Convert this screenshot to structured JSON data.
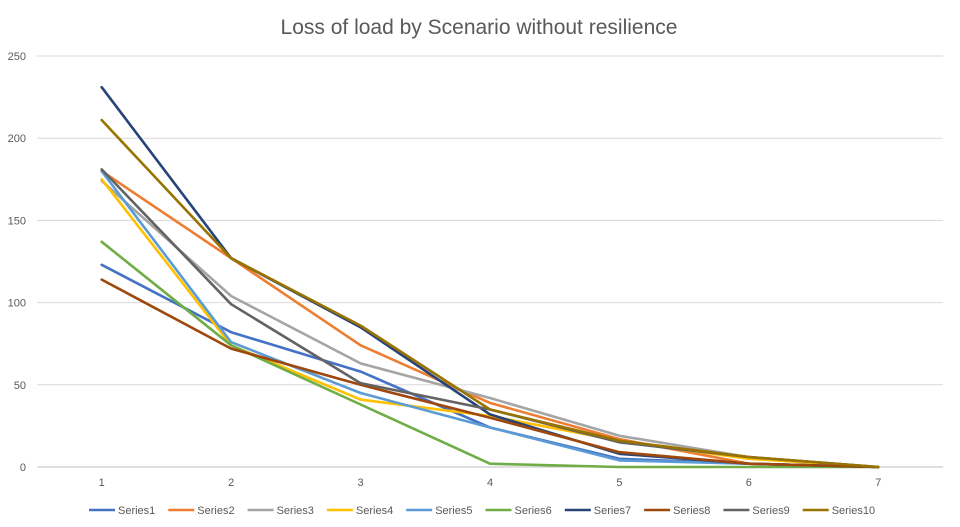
{
  "chart_data": {
    "type": "line",
    "title": "Loss of load by Scenario without resilience",
    "xlabel": "",
    "ylabel": "",
    "x": [
      1,
      2,
      3,
      4,
      5,
      6,
      7
    ],
    "ylim": [
      0,
      250
    ],
    "yticks": [
      0,
      50,
      100,
      150,
      200,
      250
    ],
    "grid": true,
    "legend_position": "bottom",
    "series": [
      {
        "name": "Series1",
        "color": "#4472C4",
        "values": [
          123,
          82,
          58,
          24,
          5,
          2,
          0
        ]
      },
      {
        "name": "Series2",
        "color": "#ED7D31",
        "values": [
          180,
          127,
          74,
          39,
          17,
          2,
          0
        ]
      },
      {
        "name": "Series3",
        "color": "#A5A5A5",
        "values": [
          174,
          104,
          63,
          42,
          19,
          6,
          0
        ]
      },
      {
        "name": "Series4",
        "color": "#FFC000",
        "values": [
          175,
          74,
          41,
          31,
          16,
          5,
          0
        ]
      },
      {
        "name": "Series5",
        "color": "#5B9BD5",
        "values": [
          180,
          76,
          45,
          24,
          4,
          2,
          0
        ]
      },
      {
        "name": "Series6",
        "color": "#70AD47",
        "values": [
          137,
          74,
          38,
          2,
          0,
          0,
          0
        ]
      },
      {
        "name": "Series7",
        "color": "#264478",
        "values": [
          231,
          127,
          85,
          32,
          8,
          2,
          0
        ]
      },
      {
        "name": "Series8",
        "color": "#9E480E",
        "values": [
          114,
          72,
          50,
          30,
          9,
          2,
          0
        ]
      },
      {
        "name": "Series9",
        "color": "#636363",
        "values": [
          181,
          99,
          51,
          35,
          15,
          6,
          0
        ]
      },
      {
        "name": "Series10",
        "color": "#997300",
        "values": [
          211,
          127,
          86,
          35,
          16,
          6,
          0
        ]
      }
    ]
  }
}
